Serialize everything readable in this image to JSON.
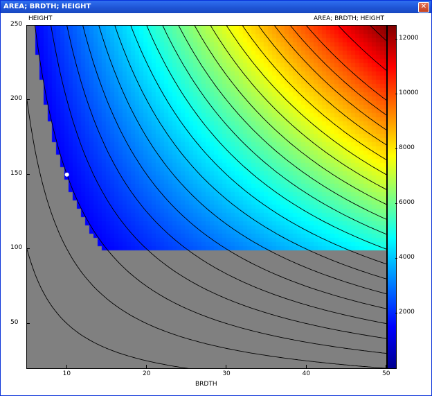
{
  "window": {
    "title": "AREA; BRDTH; HEIGHT",
    "close_icon": "close-icon"
  },
  "plot": {
    "y_axis_label": "HEIGHT",
    "x_axis_label": "BRDTH",
    "colorbar_label": "AREA; BRDTH; HEIGHT"
  },
  "chart_data": {
    "type": "heatmap",
    "title": "AREA; BRDTH; HEIGHT",
    "xlabel": "BRDTH",
    "ylabel": "HEIGHT",
    "xlim": [
      5,
      50
    ],
    "ylim": [
      20,
      250
    ],
    "x_ticks": [
      10,
      20,
      30,
      40,
      50
    ],
    "y_ticks": [
      50,
      100,
      150,
      200,
      250
    ],
    "colorbar": {
      "label": "AREA; BRDTH; HEIGHT",
      "ticks": [
        2000,
        4000,
        6000,
        8000,
        10000,
        12000
      ],
      "range": [
        0,
        12500
      ],
      "colors": [
        "#00008f",
        "#0000ff",
        "#00ffff",
        "#ffff00",
        "#ff0000",
        "#800000"
      ]
    },
    "masked_color": "#808080",
    "contour_levels": [
      500,
      1000,
      1500,
      2000,
      2500,
      3000,
      3500,
      4000,
      4500,
      5000,
      5500,
      6000,
      6500,
      7000,
      7500,
      8000,
      8500,
      9000,
      9500,
      10000,
      11000,
      12000
    ],
    "marker": {
      "x": 10,
      "y": 150,
      "color": "#ffffff"
    }
  }
}
